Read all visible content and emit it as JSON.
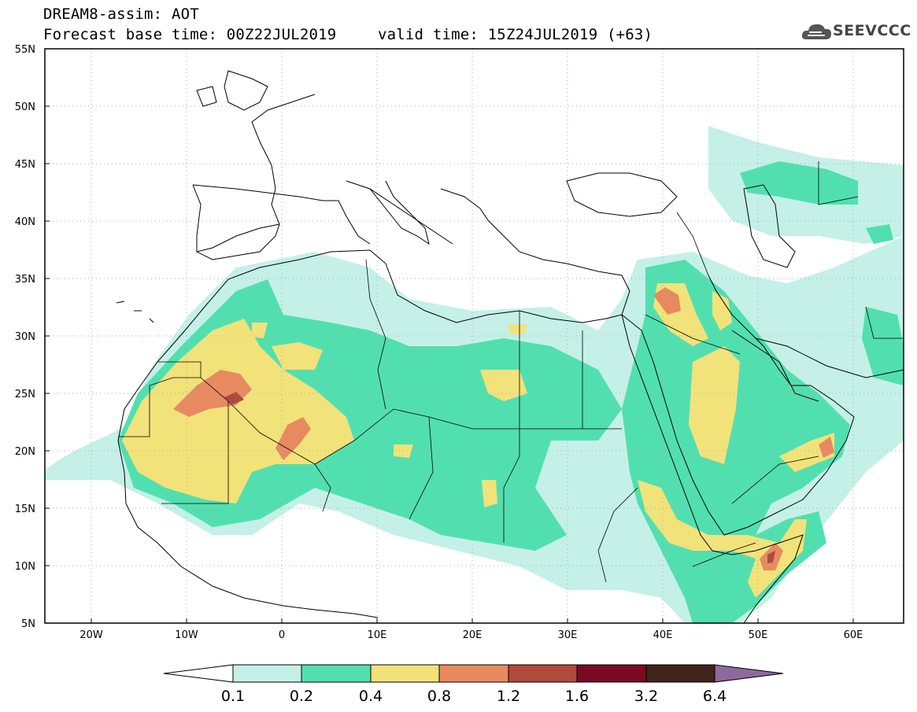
{
  "header": {
    "title": "DREAM8-assim: AOT",
    "forecast_base": "Forecast base time: 00Z22JUL2019",
    "valid_time": "valid time: 15Z24JUL2019 (+63)"
  },
  "logo": {
    "text": "SEEVCCC",
    "icon": "cloud-icon"
  },
  "map": {
    "lon_ticks": [
      "20W",
      "10W",
      "0",
      "10E",
      "20E",
      "30E",
      "40E",
      "50E",
      "60E"
    ],
    "lat_ticks": [
      "55N",
      "50N",
      "45N",
      "40N",
      "35N",
      "30N",
      "25N",
      "20N",
      "15N",
      "10N",
      "5N"
    ],
    "lon_range": [
      -25,
      65
    ],
    "lat_range": [
      5,
      55
    ]
  },
  "colorbar": {
    "labels": [
      "0.1",
      "0.2",
      "0.4",
      "0.8",
      "1.2",
      "1.6",
      "3.2",
      "6.4"
    ],
    "colors": [
      "#c4f0e8",
      "#52dfb0",
      "#f2e27a",
      "#e88a60",
      "#b04a3c",
      "#7a0a22",
      "#40241a",
      "#8c6aa0"
    ]
  }
}
